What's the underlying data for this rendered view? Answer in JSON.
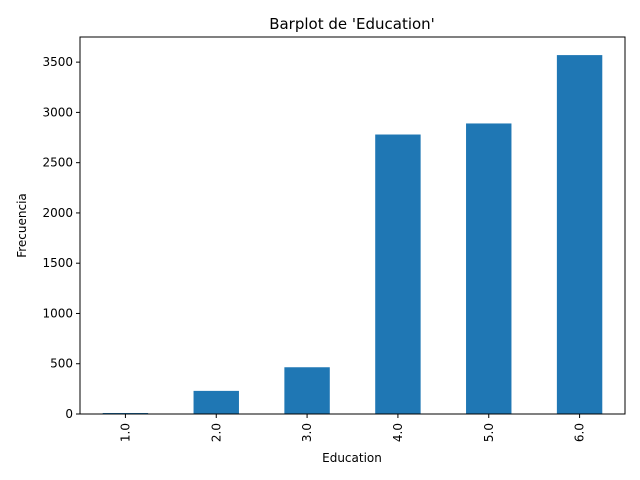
{
  "chart_data": {
    "type": "bar",
    "title": "Barplot de 'Education'",
    "xlabel": "Education",
    "ylabel": "Frecuencia",
    "categories": [
      "1.0",
      "2.0",
      "3.0",
      "4.0",
      "5.0",
      "6.0"
    ],
    "values": [
      10,
      230,
      465,
      2780,
      2890,
      3570
    ],
    "ylim": [
      0,
      3750
    ],
    "yticks": [
      0,
      500,
      1000,
      1500,
      2000,
      2500,
      3000,
      3500
    ],
    "grid": false,
    "legend": false,
    "bar_color": "#1f77b4"
  }
}
